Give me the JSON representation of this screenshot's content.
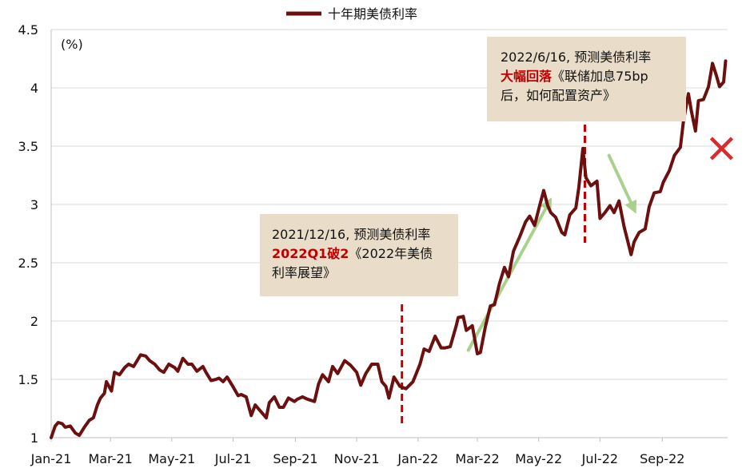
{
  "chart_data": {
    "type": "line",
    "legend": {
      "series_name": "十年期美债利率",
      "placement": "top-center"
    },
    "ylabel": "(%)",
    "ylim": [
      1,
      4.5
    ],
    "y_ticks": [
      "1",
      "1.5",
      "2",
      "2.5",
      "3",
      "3.5",
      "4",
      "4.5"
    ],
    "xlim": [
      "2021-01-01",
      "2022-11-05"
    ],
    "x_tick_labels": [
      "Jan-21",
      "Mar-21",
      "May-21",
      "Jul-21",
      "Sep-21",
      "Nov-21",
      "Jan-22",
      "Mar-22",
      "May-22",
      "Jul-22",
      "Sep-22"
    ],
    "x_tick_dates": [
      "2021-01-01",
      "2021-03-01",
      "2021-05-01",
      "2021-07-01",
      "2021-09-01",
      "2021-11-01",
      "2022-01-01",
      "2022-03-01",
      "2022-05-01",
      "2022-07-01",
      "2022-09-01"
    ],
    "grid": "horizontal",
    "series": [
      {
        "name": "十年期美债利率",
        "color": "#6b0f0f",
        "points": [
          [
            "2021-01-01",
            1.0
          ],
          [
            "2021-01-05",
            1.1
          ],
          [
            "2021-01-08",
            1.13
          ],
          [
            "2021-01-12",
            1.12
          ],
          [
            "2021-01-15",
            1.09
          ],
          [
            "2021-01-20",
            1.1
          ],
          [
            "2021-01-25",
            1.04
          ],
          [
            "2021-01-29",
            1.02
          ],
          [
            "2021-02-03",
            1.09
          ],
          [
            "2021-02-08",
            1.15
          ],
          [
            "2021-02-12",
            1.17
          ],
          [
            "2021-02-16",
            1.28
          ],
          [
            "2021-02-19",
            1.34
          ],
          [
            "2021-02-23",
            1.38
          ],
          [
            "2021-02-25",
            1.48
          ],
          [
            "2021-03-02",
            1.4
          ],
          [
            "2021-03-05",
            1.56
          ],
          [
            "2021-03-10",
            1.54
          ],
          [
            "2021-03-15",
            1.6
          ],
          [
            "2021-03-19",
            1.63
          ],
          [
            "2021-03-24",
            1.61
          ],
          [
            "2021-03-31",
            1.71
          ],
          [
            "2021-04-05",
            1.7
          ],
          [
            "2021-04-09",
            1.66
          ],
          [
            "2021-04-14",
            1.63
          ],
          [
            "2021-04-19",
            1.58
          ],
          [
            "2021-04-23",
            1.56
          ],
          [
            "2021-04-28",
            1.63
          ],
          [
            "2021-05-04",
            1.6
          ],
          [
            "2021-05-07",
            1.57
          ],
          [
            "2021-05-12",
            1.68
          ],
          [
            "2021-05-17",
            1.63
          ],
          [
            "2021-05-21",
            1.63
          ],
          [
            "2021-05-26",
            1.57
          ],
          [
            "2021-06-01",
            1.61
          ],
          [
            "2021-06-04",
            1.56
          ],
          [
            "2021-06-09",
            1.49
          ],
          [
            "2021-06-14",
            1.5
          ],
          [
            "2021-06-17",
            1.51
          ],
          [
            "2021-06-21",
            1.48
          ],
          [
            "2021-06-25",
            1.52
          ],
          [
            "2021-06-30",
            1.45
          ],
          [
            "2021-07-06",
            1.36
          ],
          [
            "2021-07-09",
            1.37
          ],
          [
            "2021-07-14",
            1.35
          ],
          [
            "2021-07-19",
            1.19
          ],
          [
            "2021-07-23",
            1.28
          ],
          [
            "2021-07-28",
            1.23
          ],
          [
            "2021-08-03",
            1.17
          ],
          [
            "2021-08-06",
            1.3
          ],
          [
            "2021-08-11",
            1.35
          ],
          [
            "2021-08-16",
            1.26
          ],
          [
            "2021-08-20",
            1.26
          ],
          [
            "2021-08-25",
            1.34
          ],
          [
            "2021-08-31",
            1.31
          ],
          [
            "2021-09-03",
            1.33
          ],
          [
            "2021-09-08",
            1.35
          ],
          [
            "2021-09-13",
            1.33
          ],
          [
            "2021-09-20",
            1.31
          ],
          [
            "2021-09-24",
            1.46
          ],
          [
            "2021-09-28",
            1.54
          ],
          [
            "2021-10-04",
            1.48
          ],
          [
            "2021-10-08",
            1.61
          ],
          [
            "2021-10-13",
            1.55
          ],
          [
            "2021-10-20",
            1.66
          ],
          [
            "2021-10-26",
            1.62
          ],
          [
            "2021-11-01",
            1.56
          ],
          [
            "2021-11-05",
            1.45
          ],
          [
            "2021-11-10",
            1.55
          ],
          [
            "2021-11-16",
            1.63
          ],
          [
            "2021-11-22",
            1.63
          ],
          [
            "2021-11-26",
            1.48
          ],
          [
            "2021-11-30",
            1.44
          ],
          [
            "2021-12-03",
            1.34
          ],
          [
            "2021-12-08",
            1.52
          ],
          [
            "2021-12-14",
            1.44
          ],
          [
            "2021-12-20",
            1.42
          ],
          [
            "2021-12-27",
            1.48
          ],
          [
            "2022-01-03",
            1.63
          ],
          [
            "2022-01-07",
            1.76
          ],
          [
            "2022-01-12",
            1.74
          ],
          [
            "2022-01-18",
            1.87
          ],
          [
            "2022-01-24",
            1.77
          ],
          [
            "2022-01-28",
            1.77
          ],
          [
            "2022-02-02",
            1.78
          ],
          [
            "2022-02-08",
            1.96
          ],
          [
            "2022-02-10",
            2.03
          ],
          [
            "2022-02-15",
            2.04
          ],
          [
            "2022-02-18",
            1.92
          ],
          [
            "2022-02-24",
            1.96
          ],
          [
            "2022-03-01",
            1.72
          ],
          [
            "2022-03-04",
            1.73
          ],
          [
            "2022-03-09",
            1.95
          ],
          [
            "2022-03-14",
            2.13
          ],
          [
            "2022-03-18",
            2.14
          ],
          [
            "2022-03-23",
            2.32
          ],
          [
            "2022-03-28",
            2.46
          ],
          [
            "2022-04-01",
            2.38
          ],
          [
            "2022-04-06",
            2.6
          ],
          [
            "2022-04-12",
            2.72
          ],
          [
            "2022-04-18",
            2.85
          ],
          [
            "2022-04-22",
            2.9
          ],
          [
            "2022-04-27",
            2.82
          ],
          [
            "2022-05-02",
            2.99
          ],
          [
            "2022-05-06",
            3.12
          ],
          [
            "2022-05-10",
            2.99
          ],
          [
            "2022-05-13",
            2.93
          ],
          [
            "2022-05-18",
            2.89
          ],
          [
            "2022-05-24",
            2.76
          ],
          [
            "2022-05-27",
            2.74
          ],
          [
            "2022-06-01",
            2.91
          ],
          [
            "2022-06-07",
            2.97
          ],
          [
            "2022-06-10",
            3.15
          ],
          [
            "2022-06-14",
            3.48
          ],
          [
            "2022-06-17",
            3.23
          ],
          [
            "2022-06-22",
            3.16
          ],
          [
            "2022-06-28",
            3.2
          ],
          [
            "2022-07-01",
            2.88
          ],
          [
            "2022-07-06",
            2.93
          ],
          [
            "2022-07-11",
            2.99
          ],
          [
            "2022-07-15",
            2.93
          ],
          [
            "2022-07-20",
            3.03
          ],
          [
            "2022-07-25",
            2.81
          ],
          [
            "2022-08-01",
            2.57
          ],
          [
            "2022-08-04",
            2.68
          ],
          [
            "2022-08-09",
            2.76
          ],
          [
            "2022-08-15",
            2.79
          ],
          [
            "2022-08-19",
            2.98
          ],
          [
            "2022-08-24",
            3.1
          ],
          [
            "2022-08-30",
            3.11
          ],
          [
            "2022-09-02",
            3.19
          ],
          [
            "2022-09-08",
            3.29
          ],
          [
            "2022-09-13",
            3.42
          ],
          [
            "2022-09-19",
            3.49
          ],
          [
            "2022-09-22",
            3.71
          ],
          [
            "2022-09-27",
            3.95
          ],
          [
            "2022-09-30",
            3.8
          ],
          [
            "2022-10-04",
            3.63
          ],
          [
            "2022-10-07",
            3.89
          ],
          [
            "2022-10-12",
            3.9
          ],
          [
            "2022-10-17",
            4.01
          ],
          [
            "2022-10-21",
            4.21
          ],
          [
            "2022-10-25",
            4.1
          ],
          [
            "2022-10-28",
            4.01
          ],
          [
            "2022-11-01",
            4.05
          ],
          [
            "2022-11-03",
            4.23
          ]
        ]
      }
    ],
    "annotations": [
      {
        "id": "dec21",
        "date": "2021-12-16",
        "text_line1": "2021/12/16, 预测美债利率",
        "highlight": "2022Q1破2",
        "text_after": "《2022年美债",
        "text_line3": "利率展望》",
        "line_color": "#c00000"
      },
      {
        "id": "jun22",
        "date": "2022-06-16",
        "text_line1": "2022/6/16, 预测美债利率",
        "highlight": "大幅回落",
        "text_after": "《联储加息75bp",
        "text_line3": "后，如何配置资产》",
        "line_color": "#c00000"
      }
    ],
    "arrows": [
      {
        "from": [
          "2022-02-20",
          1.75
        ],
        "to": [
          "2022-05-14",
          3.06
        ],
        "color": "#a9d18e"
      },
      {
        "from": [
          "2022-07-10",
          3.42
        ],
        "to": [
          "2022-08-06",
          2.92
        ],
        "color": "#a9d18e"
      }
    ],
    "cross_marker": {
      "date": "2022-10-30",
      "value": 3.48,
      "color": "#d92b2b"
    },
    "background": "#ffffff",
    "box_fill": "#e9dcc9",
    "highlight_color": "#c00000"
  }
}
